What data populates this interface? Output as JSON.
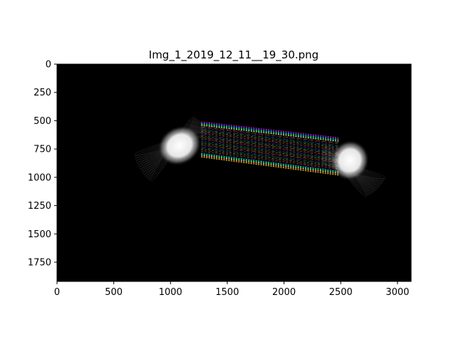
{
  "chart_data": {
    "type": "heatmap",
    "title": "Img_1_2019_12_11__19_30.png",
    "xlabel": "",
    "ylabel": "",
    "xlim": [
      0,
      3120
    ],
    "ylim": [
      1920,
      0
    ],
    "y_inverted": true,
    "x_ticks": [
      0,
      500,
      1000,
      1500,
      2000,
      2500,
      3000
    ],
    "x_tick_labels": [
      "0",
      "500",
      "1000",
      "1500",
      "2000",
      "2500",
      "3000"
    ],
    "y_ticks": [
      0,
      250,
      500,
      750,
      1000,
      1250,
      1500,
      1750
    ],
    "y_tick_labels": [
      "0",
      "250",
      "500",
      "750",
      "1000",
      "1250",
      "1500",
      "1750"
    ],
    "grid": false,
    "background_color": "#000000",
    "bright_regions": [
      {
        "name": "left-lobe",
        "cx": 1080,
        "cy": 720,
        "rx": 200,
        "ry": 170,
        "intensity": 1.0
      },
      {
        "name": "right-lobe",
        "cx": 2580,
        "cy": 850,
        "rx": 170,
        "ry": 180,
        "intensity": 1.0
      }
    ],
    "streak_band": {
      "top": [
        [
          1270,
          510
        ],
        [
          2480,
          650
        ]
      ],
      "bottom": [
        [
          1270,
          820
        ],
        [
          2480,
          980
        ]
      ],
      "colors": [
        "#ff00ff",
        "#00ff00",
        "#ffff00",
        "#00ffff",
        "#ff4040",
        "#4040ff",
        "#ffffff"
      ]
    }
  }
}
